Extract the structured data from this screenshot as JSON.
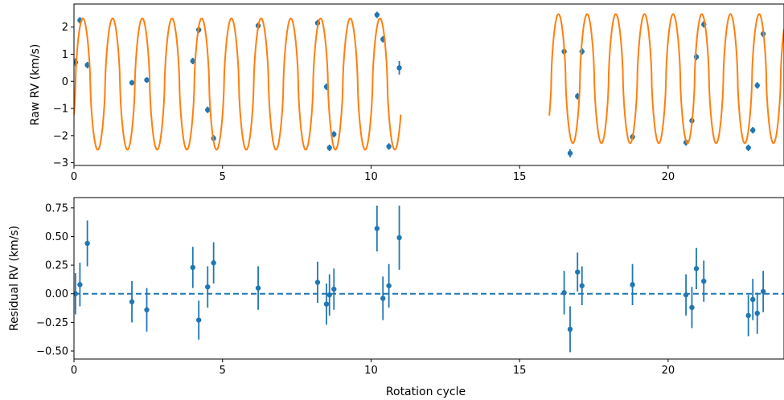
{
  "chart_data": [
    {
      "type": "line",
      "xlabel": "",
      "ylabel": "Raw RV (km/s)",
      "xlim": [
        0,
        23.9
      ],
      "ylim": [
        -3.1,
        2.85
      ],
      "xticks": [
        0,
        5,
        10,
        15,
        20
      ],
      "yticks": [
        -3,
        -2,
        -1,
        0,
        1,
        2
      ],
      "grid": false,
      "legend": "none",
      "series": [
        {
          "kind": "errorbar",
          "color": "#1f77b4",
          "x": [
            0.05,
            0.2,
            0.45,
            1.95,
            2.45,
            4.0,
            4.2,
            4.5,
            4.7,
            6.2,
            8.2,
            8.5,
            8.6,
            8.75,
            10.2,
            10.4,
            10.6,
            10.95,
            16.5,
            16.7,
            16.95,
            17.1,
            18.8,
            20.6,
            20.8,
            20.95,
            21.2,
            22.7,
            22.85,
            23.0,
            23.2
          ],
          "y": [
            0.7,
            2.25,
            0.6,
            -0.05,
            0.05,
            0.75,
            1.9,
            -1.05,
            -2.1,
            2.05,
            2.15,
            -0.2,
            -2.45,
            -1.95,
            2.45,
            1.55,
            -2.4,
            0.5,
            1.1,
            -2.65,
            -0.55,
            1.1,
            -2.05,
            -2.25,
            -1.45,
            0.9,
            2.1,
            -2.45,
            -1.8,
            -0.15,
            1.75
          ],
          "err": [
            0.15,
            0.12,
            0.12,
            0.1,
            0.1,
            0.12,
            0.12,
            0.12,
            0.12,
            0.12,
            0.12,
            0.12,
            0.12,
            0.12,
            0.12,
            0.12,
            0.12,
            0.25,
            0.12,
            0.15,
            0.12,
            0.12,
            0.12,
            0.12,
            0.12,
            0.12,
            0.12,
            0.12,
            0.12,
            0.12,
            0.12
          ]
        },
        {
          "kind": "model",
          "color": "#ff7f0e",
          "segments": [
            {
              "x_start": 0.0,
              "x_end": 11.0,
              "period": 1.0,
              "phase": 0.95,
              "amp_high": 2.32,
              "amp_low": -2.52
            },
            {
              "x_start": 16.0,
              "x_end": 23.9,
              "period": 0.965,
              "phase": 0.35,
              "amp_high": 2.48,
              "amp_low": -2.28
            }
          ]
        }
      ]
    },
    {
      "type": "scatter",
      "xlabel": "Rotation cycle",
      "ylabel": "Residual RV (km/s)",
      "xlim": [
        0,
        23.9
      ],
      "ylim": [
        -0.57,
        0.84
      ],
      "xticks": [
        0,
        5,
        10,
        15,
        20
      ],
      "yticks": [
        -0.5,
        -0.25,
        0.0,
        0.25,
        0.5,
        0.75
      ],
      "grid": false,
      "legend": "none",
      "reference_line": {
        "y": 0.0,
        "style": "dashed",
        "color": "#1f77b4"
      },
      "series": [
        {
          "kind": "errorbar",
          "color": "#1f77b4",
          "x": [
            0.05,
            0.2,
            0.45,
            1.95,
            2.45,
            4.0,
            4.2,
            4.5,
            4.7,
            6.2,
            8.2,
            8.5,
            8.6,
            8.75,
            10.2,
            10.4,
            10.6,
            10.95,
            16.5,
            16.7,
            16.95,
            17.1,
            18.8,
            20.6,
            20.8,
            20.95,
            21.2,
            22.7,
            22.85,
            23.0,
            23.2
          ],
          "y": [
            0.0,
            0.08,
            0.44,
            -0.07,
            -0.14,
            0.23,
            -0.23,
            0.06,
            0.27,
            0.05,
            0.1,
            -0.09,
            -0.01,
            0.04,
            0.57,
            -0.04,
            0.07,
            0.49,
            0.01,
            -0.31,
            0.19,
            0.07,
            0.08,
            -0.01,
            -0.12,
            0.22,
            0.11,
            -0.19,
            -0.05,
            -0.17,
            0.02
          ],
          "err": [
            0.18,
            0.19,
            0.2,
            0.18,
            0.19,
            0.18,
            0.17,
            0.18,
            0.18,
            0.19,
            0.18,
            0.18,
            0.18,
            0.18,
            0.2,
            0.19,
            0.19,
            0.28,
            0.19,
            0.2,
            0.17,
            0.17,
            0.18,
            0.18,
            0.18,
            0.18,
            0.18,
            0.18,
            0.18,
            0.18,
            0.18
          ]
        }
      ]
    }
  ]
}
